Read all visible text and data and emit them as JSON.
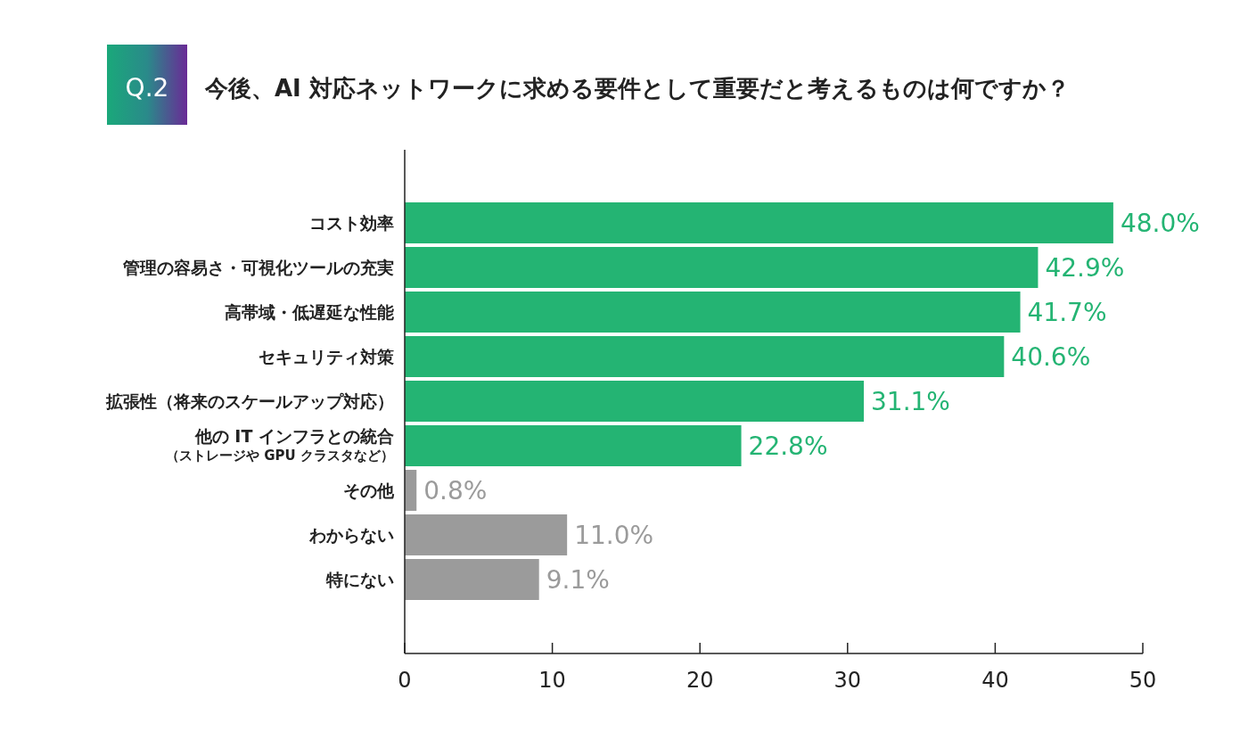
{
  "chart_data": {
    "type": "bar",
    "orientation": "horizontal",
    "title": "今後、AI 対応ネットワークに求める要件として重要だと考えるものは何ですか？",
    "annotations": [
      "Q.2"
    ],
    "categories": [
      "コスト効率",
      "管理の容易さ・可視化ツールの充実",
      "高帯域・低遅延な性能",
      "セキュリティ対策",
      "拡張性（将来のスケールアップ対応）",
      "他の IT インフラとの統合（ストレージや GPU クラスタなど）",
      "その他",
      "わからない",
      "特にない"
    ],
    "values": [
      48.0,
      42.9,
      41.7,
      40.6,
      31.1,
      22.8,
      0.8,
      11.0,
      9.1
    ],
    "value_labels": [
      "48.0%",
      "42.9%",
      "41.7%",
      "40.6%",
      "31.1%",
      "22.8%",
      "0.8%",
      "11.0%",
      "9.1%"
    ],
    "colors": [
      "#24b473",
      "#24b473",
      "#24b473",
      "#24b473",
      "#24b473",
      "#24b473",
      "#9b9b9b",
      "#9b9b9b",
      "#9b9b9b"
    ],
    "xlim": [
      0,
      50
    ],
    "xticks": [
      0,
      10,
      20,
      30,
      40,
      50
    ]
  }
}
